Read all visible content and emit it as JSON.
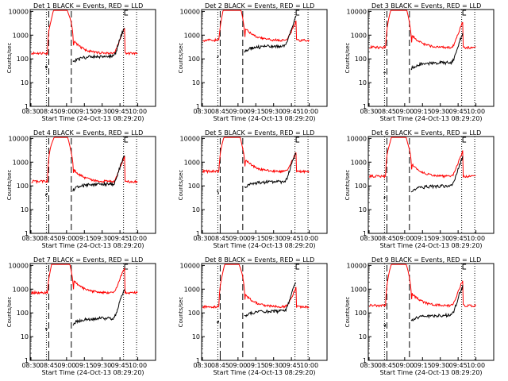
{
  "chart_data": [
    {
      "title": "Det 1  BLACK = Events, RED = LLD",
      "panel": 1
    },
    {
      "title": "Det 2  BLACK = Events, RED = LLD",
      "panel": 2
    },
    {
      "title": "Det 3  BLACK = Events, RED = LLD",
      "panel": 3
    },
    {
      "title": "Det 4  BLACK = Events, RED = LLD",
      "panel": 4
    },
    {
      "title": "Det 5  BLACK = Events, RED = LLD",
      "panel": 5
    },
    {
      "title": "Det 6  BLACK = Events, RED = LLD",
      "panel": 6
    },
    {
      "title": "Det 7  BLACK = Events, RED = LLD",
      "panel": 7
    },
    {
      "title": "Det 8  BLACK = Events, RED = LLD",
      "panel": 8
    },
    {
      "title": "Det 9  BLACK = Events, RED = LLD",
      "panel": 9
    }
  ],
  "common": {
    "type": "line",
    "xlabel": "Start Time (24-Oct-13 08:29:20)",
    "ylabel": "Counts/sec",
    "yscale": "log",
    "ylim": [
      1,
      12000
    ],
    "ytick_labels": [
      "1",
      "10",
      "100",
      "1000",
      "10000"
    ],
    "xlim": [
      "08:29:20",
      "10:15:00"
    ],
    "xtick_labels": [
      "08:30",
      "08:45",
      "09:00",
      "09:15",
      "09:30",
      "09:45",
      "10:00"
    ],
    "dashed_markers": [
      "08:45",
      "09:04"
    ],
    "dotted_markers": [
      "08:43",
      "09:48",
      "09:59"
    ],
    "series": [
      {
        "name": "LLD",
        "color": "#ff0000"
      },
      {
        "name": "Events",
        "color": "#000000"
      }
    ],
    "lld_base": [
      170,
      600,
      300,
      150,
      400,
      250,
      700,
      180,
      200
    ],
    "events_base": [
      130,
      350,
      70,
      120,
      150,
      100,
      60,
      120,
      80
    ],
    "panel_layout": "3x3 grid"
  }
}
